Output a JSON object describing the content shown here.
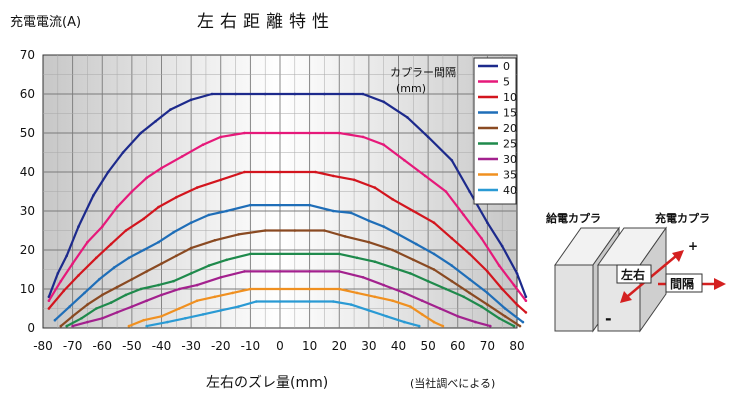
{
  "chart_data": {
    "type": "line",
    "title": "左右距離特性",
    "ylabel": "充電電流(A)",
    "xlabel": "左右のズレ量(mm)",
    "note": "(当社調べによる)",
    "xlim": [
      -80,
      80
    ],
    "ylim": [
      0,
      70
    ],
    "xticks": [
      "-80",
      "-70",
      "-60",
      "-50",
      "-40",
      "-30",
      "-20",
      "-10",
      "0",
      "10",
      "20",
      "30",
      "40",
      "50",
      "60",
      "70",
      "80"
    ],
    "yticks": [
      "0",
      "10",
      "20",
      "30",
      "40",
      "50",
      "60",
      "70"
    ],
    "legend_title_line1": "カプラー間隔",
    "legend_title_line2": "(mm)",
    "legend_position": "top-right",
    "series": [
      {
        "name": "0",
        "color": "#1d2a8c",
        "points": [
          [
            -78,
            8
          ],
          [
            -75,
            14
          ],
          [
            -72,
            18.5
          ],
          [
            -68,
            26
          ],
          [
            -63,
            34
          ],
          [
            -58,
            40
          ],
          [
            -53,
            45
          ],
          [
            -47,
            50
          ],
          [
            -42,
            53
          ],
          [
            -37,
            56
          ],
          [
            -30,
            58.5
          ],
          [
            -23,
            60
          ],
          [
            -15,
            60
          ],
          [
            -5,
            60
          ],
          [
            5,
            60
          ],
          [
            15,
            60
          ],
          [
            28,
            60
          ],
          [
            35,
            58
          ],
          [
            43,
            54
          ],
          [
            50,
            49
          ],
          [
            58,
            43
          ],
          [
            64,
            35
          ],
          [
            70,
            27
          ],
          [
            75,
            21
          ],
          [
            80,
            14
          ],
          [
            83,
            8
          ]
        ]
      },
      {
        "name": "5",
        "color": "#e6197a",
        "points": [
          [
            -78,
            7
          ],
          [
            -74,
            12
          ],
          [
            -70,
            16.5
          ],
          [
            -65,
            22
          ],
          [
            -60,
            26
          ],
          [
            -55,
            31
          ],
          [
            -50,
            35
          ],
          [
            -45,
            38.5
          ],
          [
            -40,
            41
          ],
          [
            -33,
            44
          ],
          [
            -26,
            47
          ],
          [
            -20,
            49
          ],
          [
            -12,
            50
          ],
          [
            0,
            50
          ],
          [
            10,
            50
          ],
          [
            20,
            50
          ],
          [
            28,
            49
          ],
          [
            35,
            47
          ],
          [
            42,
            43
          ],
          [
            49,
            39
          ],
          [
            56,
            35
          ],
          [
            62,
            29
          ],
          [
            68,
            23
          ],
          [
            74,
            16
          ],
          [
            79,
            11
          ],
          [
            83,
            7
          ]
        ]
      },
      {
        "name": "10",
        "color": "#d3151e",
        "points": [
          [
            -78,
            5
          ],
          [
            -73,
            9.5
          ],
          [
            -68,
            13.5
          ],
          [
            -62,
            18
          ],
          [
            -57,
            21.5
          ],
          [
            -52,
            25
          ],
          [
            -46,
            28
          ],
          [
            -41,
            31
          ],
          [
            -35,
            33.5
          ],
          [
            -28,
            36
          ],
          [
            -20,
            38
          ],
          [
            -12,
            40
          ],
          [
            0,
            40
          ],
          [
            12,
            40
          ],
          [
            18,
            39
          ],
          [
            25,
            38
          ],
          [
            32,
            36
          ],
          [
            38,
            33
          ],
          [
            45,
            30
          ],
          [
            52,
            27
          ],
          [
            58,
            23
          ],
          [
            64,
            19
          ],
          [
            70,
            14.5
          ],
          [
            75,
            10
          ],
          [
            80,
            6
          ],
          [
            83,
            4
          ]
        ]
      },
      {
        "name": "15",
        "color": "#1f6eb8",
        "points": [
          [
            -76,
            2
          ],
          [
            -71,
            5.5
          ],
          [
            -66,
            9
          ],
          [
            -61,
            12.5
          ],
          [
            -56,
            15.5
          ],
          [
            -51,
            18
          ],
          [
            -46,
            20
          ],
          [
            -41,
            22
          ],
          [
            -36,
            24.5
          ],
          [
            -30,
            27
          ],
          [
            -24,
            29
          ],
          [
            -18,
            30
          ],
          [
            -10,
            31.5
          ],
          [
            0,
            31.5
          ],
          [
            10,
            31.5
          ],
          [
            18,
            30
          ],
          [
            24,
            29.5
          ],
          [
            30,
            27.5
          ],
          [
            35,
            26
          ],
          [
            40,
            24
          ],
          [
            46,
            21.5
          ],
          [
            52,
            19
          ],
          [
            58,
            16
          ],
          [
            64,
            12.5
          ],
          [
            70,
            9
          ],
          [
            76,
            5
          ],
          [
            82,
            1.5
          ]
        ]
      },
      {
        "name": "20",
        "color": "#8a4a22",
        "points": [
          [
            -74,
            0.5
          ],
          [
            -70,
            3
          ],
          [
            -65,
            6
          ],
          [
            -60,
            8.5
          ],
          [
            -55,
            10.5
          ],
          [
            -50,
            12.5
          ],
          [
            -45,
            14.5
          ],
          [
            -40,
            16.5
          ],
          [
            -35,
            18.5
          ],
          [
            -30,
            20.5
          ],
          [
            -22,
            22.5
          ],
          [
            -14,
            24
          ],
          [
            -5,
            25
          ],
          [
            5,
            25
          ],
          [
            15,
            25
          ],
          [
            22,
            23.5
          ],
          [
            30,
            22
          ],
          [
            38,
            20
          ],
          [
            45,
            17.5
          ],
          [
            52,
            15
          ],
          [
            58,
            12
          ],
          [
            64,
            9
          ],
          [
            70,
            6
          ],
          [
            76,
            3
          ],
          [
            81,
            0.5
          ]
        ]
      },
      {
        "name": "25",
        "color": "#1f8a4c",
        "points": [
          [
            -72,
            0.5
          ],
          [
            -67,
            2.5
          ],
          [
            -62,
            5
          ],
          [
            -57,
            6.5
          ],
          [
            -52,
            8.5
          ],
          [
            -47,
            10
          ],
          [
            -41,
            11
          ],
          [
            -36,
            12
          ],
          [
            -30,
            14
          ],
          [
            -24,
            16
          ],
          [
            -18,
            17.5
          ],
          [
            -10,
            19
          ],
          [
            0,
            19
          ],
          [
            10,
            19
          ],
          [
            20,
            19
          ],
          [
            26,
            18
          ],
          [
            32,
            17
          ],
          [
            38,
            15.5
          ],
          [
            44,
            14
          ],
          [
            50,
            12
          ],
          [
            56,
            10
          ],
          [
            62,
            8
          ],
          [
            68,
            5.5
          ],
          [
            74,
            2.5
          ],
          [
            79,
            0.5
          ]
        ]
      },
      {
        "name": "30",
        "color": "#a3218e",
        "points": [
          [
            -70,
            0.5
          ],
          [
            -65,
            1.5
          ],
          [
            -60,
            2.5
          ],
          [
            -55,
            4
          ],
          [
            -50,
            5.5
          ],
          [
            -45,
            7
          ],
          [
            -40,
            8.5
          ],
          [
            -34,
            10
          ],
          [
            -28,
            11
          ],
          [
            -20,
            13
          ],
          [
            -12,
            14.5
          ],
          [
            0,
            14.5
          ],
          [
            10,
            14.5
          ],
          [
            20,
            14.5
          ],
          [
            28,
            13
          ],
          [
            35,
            11
          ],
          [
            42,
            9
          ],
          [
            48,
            7
          ],
          [
            54,
            5
          ],
          [
            60,
            3
          ],
          [
            66,
            1.5
          ],
          [
            71,
            0.5
          ]
        ]
      },
      {
        "name": "35",
        "color": "#f09020",
        "points": [
          [
            -51,
            0.5
          ],
          [
            -46,
            2
          ],
          [
            -40,
            3
          ],
          [
            -34,
            5
          ],
          [
            -28,
            7
          ],
          [
            -22,
            8
          ],
          [
            -16,
            9
          ],
          [
            -10,
            10
          ],
          [
            0,
            10
          ],
          [
            10,
            10
          ],
          [
            20,
            10
          ],
          [
            26,
            9
          ],
          [
            32,
            8
          ],
          [
            38,
            7
          ],
          [
            44,
            5.5
          ],
          [
            48,
            3.5
          ],
          [
            52,
            1.5
          ],
          [
            55,
            0.5
          ]
        ]
      },
      {
        "name": "40",
        "color": "#2a9ad4",
        "points": [
          [
            -45,
            0.5
          ],
          [
            -38,
            1.5
          ],
          [
            -32,
            2.5
          ],
          [
            -26,
            3.5
          ],
          [
            -20,
            4.5
          ],
          [
            -14,
            5.5
          ],
          [
            -8,
            6.8
          ],
          [
            0,
            6.8
          ],
          [
            10,
            6.8
          ],
          [
            18,
            6.8
          ],
          [
            24,
            6
          ],
          [
            30,
            4.5
          ],
          [
            36,
            3
          ],
          [
            42,
            1.5
          ],
          [
            47,
            0.5
          ]
        ]
      }
    ]
  },
  "diagram": {
    "label_feed": "給電カプラ",
    "label_charge": "充電カプラ",
    "label_lr": "左右",
    "label_gap": "間隔",
    "label_plus": "+",
    "label_minus": "-"
  }
}
